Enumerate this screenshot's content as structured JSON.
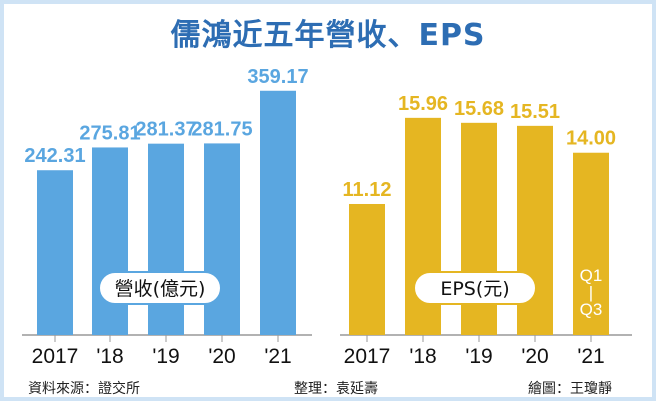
{
  "title": "儒鴻近五年營收、EPS",
  "footer": {
    "source": "資料來源：證交所",
    "editor": "整理：袁延壽",
    "artist": "繪圖：王瓊靜"
  },
  "chart_data": [
    {
      "type": "bar",
      "label": "營收(億元)",
      "categories": [
        "2017",
        "'18",
        "'19",
        "'20",
        "'21"
      ],
      "values": [
        242.31,
        275.81,
        281.37,
        281.75,
        359.17
      ],
      "value_labels": [
        "242.31",
        "275.81",
        "281.37",
        "281.75",
        "359.17"
      ],
      "color": "#5aa6e0",
      "ylim": [
        0,
        370
      ]
    },
    {
      "type": "bar",
      "label": "EPS(元)",
      "categories": [
        "2017",
        "'18",
        "'19",
        "'20",
        "'21"
      ],
      "values": [
        11.12,
        15.96,
        15.68,
        15.51,
        14.0
      ],
      "value_labels": [
        "11.12",
        "15.96",
        "15.68",
        "15.51",
        "14.00"
      ],
      "bar_note": [
        "Q1",
        "|",
        "Q3"
      ],
      "color": "#e5b622"
    }
  ]
}
